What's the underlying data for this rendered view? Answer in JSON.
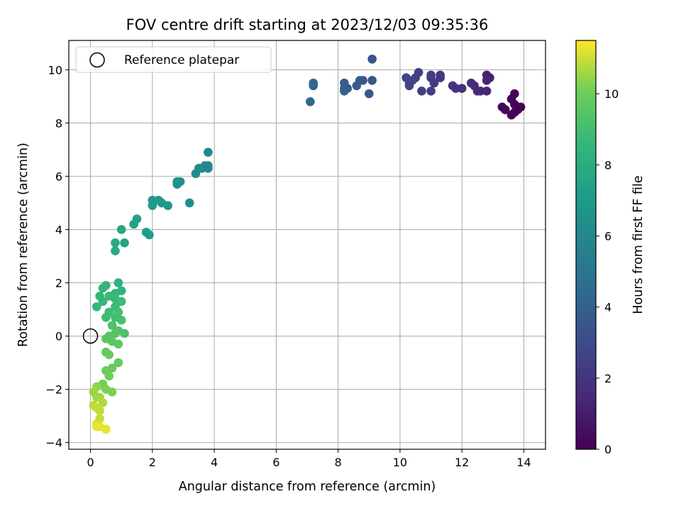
{
  "chart_data": {
    "type": "scatter",
    "title": "FOV centre drift starting at 2023/12/03 09:35:36",
    "xlabel": "Angular distance from reference (arcmin)",
    "ylabel": "Rotation from reference (arcmin)",
    "xlim": [
      -0.7,
      14.7
    ],
    "ylim": [
      -4.25,
      11.1
    ],
    "xticks": [
      0,
      2,
      4,
      6,
      8,
      10,
      12,
      14
    ],
    "yticks": [
      -4,
      -2,
      0,
      2,
      4,
      6,
      8,
      10
    ],
    "grid": true,
    "colormap": "viridis",
    "colorbar": {
      "label": "Hours from first FF file",
      "range": [
        0,
        11.5
      ],
      "ticks": [
        0,
        2,
        4,
        6,
        8,
        10
      ]
    },
    "legend": {
      "location": "top-left",
      "entries": [
        "Reference platepar"
      ]
    },
    "reference": {
      "x": 0,
      "y": 0
    },
    "series": [
      {
        "points": [
          [
            13.7,
            9.1,
            0.1
          ],
          [
            13.6,
            8.9,
            0.1
          ],
          [
            13.7,
            8.7,
            0.1
          ],
          [
            13.9,
            8.6,
            0.1
          ],
          [
            13.8,
            8.5,
            0.15
          ],
          [
            13.4,
            8.5,
            0.15
          ],
          [
            13.3,
            8.6,
            0.2
          ],
          [
            13.6,
            8.3,
            0.2
          ],
          [
            13.7,
            8.4,
            0.2
          ],
          [
            12.8,
            9.8,
            1.2
          ],
          [
            12.9,
            9.7,
            1.2
          ],
          [
            12.8,
            9.6,
            1.3
          ],
          [
            12.8,
            9.2,
            1.3
          ],
          [
            12.6,
            9.2,
            1.4
          ],
          [
            12.5,
            9.2,
            1.5
          ],
          [
            12.4,
            9.4,
            1.6
          ],
          [
            12.3,
            9.5,
            1.7
          ],
          [
            12.0,
            9.3,
            1.8
          ],
          [
            11.8,
            9.3,
            1.9
          ],
          [
            11.7,
            9.4,
            2.0
          ],
          [
            11.3,
            9.8,
            2.1
          ],
          [
            11.3,
            9.7,
            2.1
          ],
          [
            11.1,
            9.5,
            2.2
          ],
          [
            11.0,
            9.7,
            2.2
          ],
          [
            11.0,
            9.8,
            2.3
          ],
          [
            11.0,
            9.2,
            2.3
          ],
          [
            10.7,
            9.2,
            2.4
          ],
          [
            10.6,
            9.9,
            2.5
          ],
          [
            10.5,
            9.7,
            2.5
          ],
          [
            10.4,
            9.6,
            2.6
          ],
          [
            10.3,
            9.4,
            2.6
          ],
          [
            10.2,
            9.7,
            2.7
          ],
          [
            10.3,
            9.5,
            2.7
          ],
          [
            9.1,
            10.4,
            3.5
          ],
          [
            9.1,
            9.6,
            3.5
          ],
          [
            9.0,
            9.1,
            3.6
          ],
          [
            8.8,
            9.6,
            3.6
          ],
          [
            8.7,
            9.6,
            3.7
          ],
          [
            8.6,
            9.4,
            3.7
          ],
          [
            8.3,
            9.3,
            3.8
          ],
          [
            8.2,
            9.5,
            3.8
          ],
          [
            8.2,
            9.2,
            3.9
          ],
          [
            8.2,
            9.3,
            3.9
          ],
          [
            7.2,
            9.5,
            4.2
          ],
          [
            7.2,
            9.4,
            4.2
          ],
          [
            7.1,
            8.8,
            4.3
          ],
          [
            3.8,
            6.9,
            5.9
          ],
          [
            3.8,
            6.3,
            6.0
          ],
          [
            3.8,
            6.4,
            6.0
          ],
          [
            3.7,
            6.4,
            6.1
          ],
          [
            3.6,
            6.3,
            6.1
          ],
          [
            3.5,
            6.3,
            6.2
          ],
          [
            3.4,
            6.1,
            6.2
          ],
          [
            3.2,
            5.0,
            6.3
          ],
          [
            2.9,
            5.8,
            6.5
          ],
          [
            2.8,
            5.8,
            6.5
          ],
          [
            2.8,
            5.7,
            6.6
          ],
          [
            2.5,
            4.9,
            6.8
          ],
          [
            2.3,
            5.0,
            6.9
          ],
          [
            2.2,
            5.1,
            6.9
          ],
          [
            2.0,
            5.1,
            7.0
          ],
          [
            2.0,
            4.9,
            7.0
          ],
          [
            1.9,
            3.8,
            7.2
          ],
          [
            1.8,
            3.9,
            7.2
          ],
          [
            1.5,
            4.4,
            7.4
          ],
          [
            1.4,
            4.2,
            7.5
          ],
          [
            1.1,
            3.5,
            7.6
          ],
          [
            1.0,
            4.0,
            7.7
          ],
          [
            0.8,
            3.5,
            7.8
          ],
          [
            0.8,
            3.2,
            7.8
          ],
          [
            0.9,
            2.0,
            8.3
          ],
          [
            1.0,
            1.7,
            8.4
          ],
          [
            0.8,
            1.6,
            8.4
          ],
          [
            0.5,
            1.9,
            8.5
          ],
          [
            0.4,
            1.8,
            8.5
          ],
          [
            0.3,
            1.5,
            8.6
          ],
          [
            0.2,
            1.1,
            8.6
          ],
          [
            0.4,
            1.3,
            8.6
          ],
          [
            0.6,
            1.5,
            8.7
          ],
          [
            0.8,
            1.4,
            8.7
          ],
          [
            1.0,
            1.3,
            8.8
          ],
          [
            0.8,
            1.1,
            8.8
          ],
          [
            0.6,
            0.9,
            8.9
          ],
          [
            0.5,
            0.7,
            8.9
          ],
          [
            0.9,
            0.9,
            9.0
          ],
          [
            0.8,
            0.7,
            9.0
          ],
          [
            1.0,
            0.6,
            9.1
          ],
          [
            0.7,
            0.4,
            9.2
          ],
          [
            1.1,
            0.1,
            9.3
          ],
          [
            0.9,
            0.2,
            9.3
          ],
          [
            0.8,
            0.1,
            9.4
          ],
          [
            0.6,
            0.0,
            9.4
          ],
          [
            0.5,
            -0.1,
            9.5
          ],
          [
            0.7,
            -0.2,
            9.5
          ],
          [
            0.9,
            -0.3,
            9.6
          ],
          [
            0.5,
            -0.6,
            9.7
          ],
          [
            0.6,
            -0.7,
            9.8
          ],
          [
            0.9,
            -1.0,
            9.8
          ],
          [
            0.7,
            -1.2,
            9.9
          ],
          [
            0.5,
            -1.3,
            9.9
          ],
          [
            0.6,
            -1.5,
            10.0
          ],
          [
            0.4,
            -1.8,
            10.1
          ],
          [
            0.5,
            -2.0,
            10.2
          ],
          [
            0.7,
            -2.1,
            10.2
          ],
          [
            0.2,
            -1.9,
            10.4
          ],
          [
            0.1,
            -2.1,
            10.5
          ],
          [
            0.2,
            -2.3,
            10.6
          ],
          [
            0.3,
            -2.3,
            10.6
          ],
          [
            0.4,
            -2.5,
            10.7
          ],
          [
            0.1,
            -2.6,
            10.8
          ],
          [
            0.2,
            -2.7,
            10.9
          ],
          [
            0.3,
            -2.8,
            10.9
          ],
          [
            0.3,
            -3.1,
            11.0
          ],
          [
            0.2,
            -3.3,
            11.1
          ],
          [
            0.3,
            -3.4,
            11.2
          ],
          [
            0.5,
            -3.5,
            11.3
          ],
          [
            0.2,
            -3.4,
            11.3
          ]
        ]
      }
    ]
  }
}
